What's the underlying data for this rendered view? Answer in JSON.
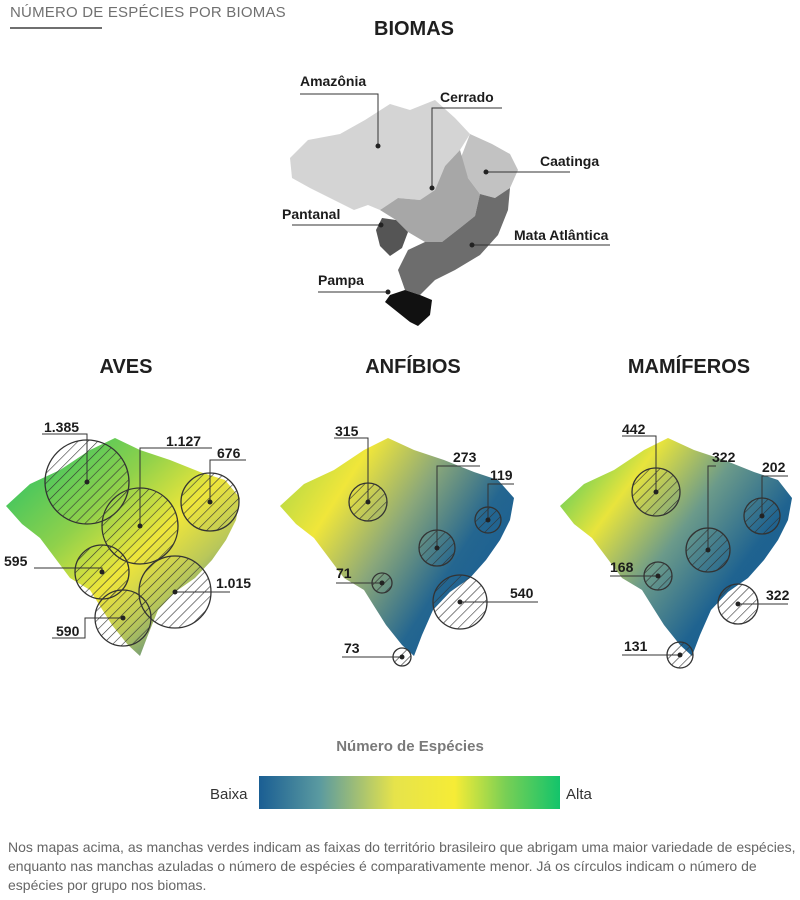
{
  "header": {
    "title": "NÚMERO DE ESPÉCIES POR BIOMAS"
  },
  "biomes_map": {
    "title": "BIOMAS",
    "labels": {
      "amazonia": "Amazônia",
      "cerrado": "Cerrado",
      "caatinga": "Caatinga",
      "pantanal": "Pantanal",
      "mata_atlantica": "Mata Atlântica",
      "pampa": "Pampa"
    },
    "colors": {
      "amazonia": "#d4d4d4",
      "cerrado": "#a7a7a7",
      "caatinga": "#c2c2c2",
      "pantanal": "#555555",
      "mata_atlantica": "#6d6d6d",
      "pampa": "#111111"
    }
  },
  "species_maps": [
    {
      "title": "AVES",
      "values": {
        "amazonia": "1.385",
        "cerrado": "1.127",
        "caatinga": "676",
        "pantanal": "595",
        "mata_atlantica": "1.015",
        "pampa": "590"
      }
    },
    {
      "title": "ANFÍBIOS",
      "values": {
        "amazonia": "315",
        "cerrado": "273",
        "caatinga": "119",
        "pantanal": "71",
        "mata_atlantica": "540",
        "pampa": "73"
      }
    },
    {
      "title": "MAMÍFEROS",
      "values": {
        "amazonia": "442",
        "cerrado": "322",
        "caatinga": "202",
        "pantanal": "168",
        "mata_atlantica": "322",
        "pampa": "131"
      }
    }
  ],
  "legend": {
    "title": "Número de Espécies",
    "low": "Baixa",
    "high": "Alta",
    "colors": [
      "#1a5e93",
      "#6fa8a0",
      "#f5e83c",
      "#f2ea3a",
      "#19c36b"
    ]
  },
  "footnote": "Nos mapas acima, as manchas verdes indicam as faixas do território brasileiro que abrigam uma maior variedade de espécies, enquanto nas manchas azuladas o número de espécies é comparativamente menor. Já os círculos indicam o número de espécies por grupo nos biomas."
}
